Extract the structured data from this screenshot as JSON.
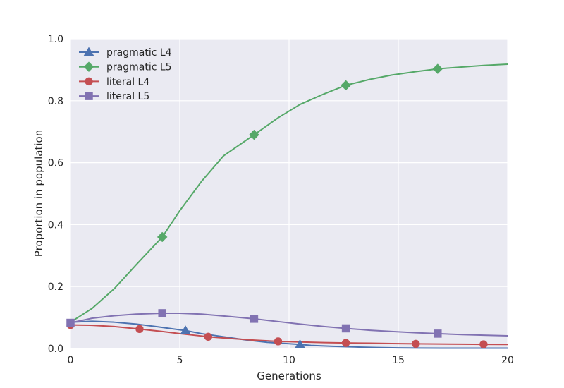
{
  "chart_data": {
    "type": "line",
    "title": "",
    "xlabel": "Generations",
    "ylabel": "Proportion in population",
    "xlim": [
      0,
      20
    ],
    "ylim": [
      0,
      1.0
    ],
    "xticks": [
      "0",
      "5",
      "10",
      "15",
      "20"
    ],
    "yticks": [
      "0.0",
      "0.2",
      "0.4",
      "0.6",
      "0.8",
      "1.0"
    ],
    "grid": true,
    "background": "#eaeaf2",
    "legend_position": "top-left",
    "series": [
      {
        "name": "pragmatic L4",
        "color": "#4c72b0",
        "marker": "triangle",
        "x": [
          0,
          1,
          2,
          3,
          4,
          5.26,
          6,
          7,
          8,
          9,
          10.5,
          11,
          12,
          13,
          14,
          15,
          16,
          17,
          18,
          19,
          20
        ],
        "y": [
          0.085,
          0.088,
          0.085,
          0.079,
          0.07,
          0.058,
          0.048,
          0.038,
          0.028,
          0.02,
          0.013,
          0.01,
          0.007,
          0.005,
          0.003,
          0.002,
          0.0015,
          0.001,
          0.001,
          0.001,
          0.001
        ],
        "marker_x": [
          5.26,
          10.5
        ],
        "marker_y": [
          0.058,
          0.013
        ]
      },
      {
        "name": "pragmatic L5",
        "color": "#55a868",
        "marker": "diamond",
        "x": [
          0,
          1,
          2,
          3,
          4.2,
          5,
          6,
          7,
          8.4,
          9.5,
          10.5,
          11.6,
          12.6,
          13.7,
          14.7,
          15.8,
          16.8,
          17.9,
          18.9,
          20
        ],
        "y": [
          0.085,
          0.13,
          0.193,
          0.27,
          0.36,
          0.445,
          0.54,
          0.622,
          0.69,
          0.745,
          0.788,
          0.822,
          0.85,
          0.869,
          0.883,
          0.894,
          0.903,
          0.909,
          0.914,
          0.918
        ],
        "marker_x": [
          4.2,
          8.4,
          12.6,
          16.8
        ],
        "marker_y": [
          0.36,
          0.69,
          0.85,
          0.903
        ]
      },
      {
        "name": "literal L4",
        "color": "#c44e52",
        "marker": "circle",
        "x": [
          0,
          1,
          2,
          3.16,
          4.2,
          5.26,
          6.3,
          7.4,
          8.4,
          9.5,
          10.5,
          11.6,
          12.6,
          13.7,
          14.7,
          15.8,
          16.8,
          17.9,
          18.9,
          20
        ],
        "y": [
          0.076,
          0.075,
          0.071,
          0.063,
          0.055,
          0.046,
          0.038,
          0.032,
          0.027,
          0.023,
          0.021,
          0.019,
          0.018,
          0.017,
          0.016,
          0.015,
          0.0145,
          0.014,
          0.0135,
          0.013
        ],
        "marker_x": [
          0,
          3.16,
          6.3,
          9.5,
          12.6,
          15.8,
          18.9
        ],
        "marker_y": [
          0.076,
          0.063,
          0.038,
          0.023,
          0.018,
          0.015,
          0.0135
        ]
      },
      {
        "name": "literal L5",
        "color": "#8172b2",
        "marker": "square",
        "x": [
          0,
          1,
          2,
          3,
          4.2,
          5,
          6,
          7,
          8.4,
          9.5,
          10.5,
          11.6,
          12.6,
          13.7,
          14.7,
          15.8,
          16.8,
          17.9,
          18.9,
          20
        ],
        "y": [
          0.083,
          0.098,
          0.106,
          0.111,
          0.114,
          0.114,
          0.111,
          0.105,
          0.096,
          0.087,
          0.079,
          0.071,
          0.065,
          0.059,
          0.055,
          0.051,
          0.048,
          0.045,
          0.043,
          0.041
        ],
        "marker_x": [
          0,
          4.2,
          8.4,
          12.6,
          16.8
        ],
        "marker_y": [
          0.083,
          0.114,
          0.096,
          0.065,
          0.048
        ]
      }
    ]
  }
}
